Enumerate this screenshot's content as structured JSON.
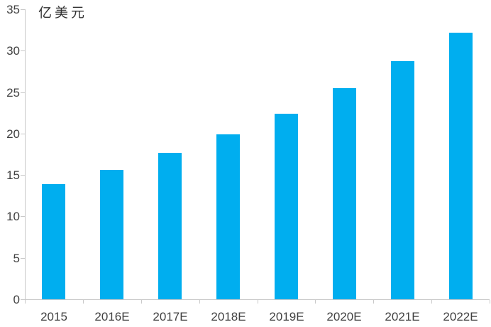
{
  "chart_data": {
    "type": "bar",
    "title": "",
    "unit_label": "亿美元",
    "categories": [
      "2015",
      "2016E",
      "2017E",
      "2018E",
      "2019E",
      "2020E",
      "2021E",
      "2022E"
    ],
    "values": [
      13.9,
      15.6,
      17.7,
      19.9,
      22.4,
      25.5,
      28.7,
      32.2
    ],
    "xlabel": "",
    "ylabel": "亿美元",
    "ylim": [
      0,
      35
    ],
    "yticks": [
      0,
      5,
      10,
      15,
      20,
      25,
      30,
      35
    ],
    "grid": false,
    "legend": "none",
    "bar_color": "#00AEEF",
    "axis_color": "#C9C9C9",
    "text_color": "#404040"
  }
}
